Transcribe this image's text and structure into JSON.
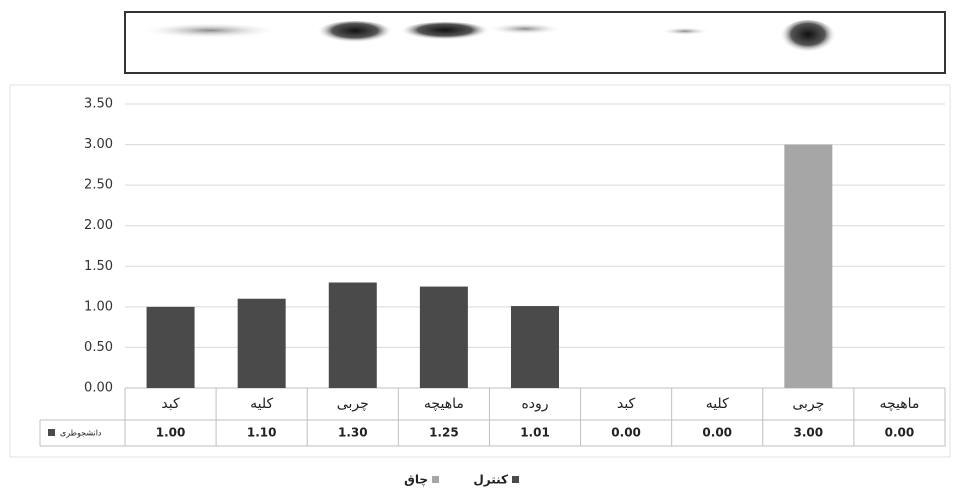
{
  "chart_data": {
    "type": "bar",
    "categories": [
      "کبد",
      "کلیه",
      "چربی",
      "ماهیچه",
      "روده",
      "کبد",
      "کلیه",
      "چربی",
      "ماهیچه"
    ],
    "series": [
      {
        "name": "کنترل",
        "color": "#4a4a4a",
        "values": [
          1.0,
          1.1,
          1.3,
          1.25,
          1.01,
          null,
          null,
          null,
          null
        ],
        "value_labels": [
          "1.00",
          "1.10",
          "1.30",
          "1.25",
          "1.01",
          null,
          null,
          null,
          null
        ]
      },
      {
        "name": "چاق",
        "color": "#a6a6a6",
        "values": [
          null,
          null,
          null,
          null,
          null,
          0,
          0,
          3,
          0
        ],
        "value_labels": [
          null,
          null,
          null,
          null,
          null,
          "0.00",
          "0.00",
          "3.00",
          "0.00"
        ]
      }
    ],
    "table_row_label": "دانشجوطری",
    "ylim": [
      0,
      3.5
    ],
    "yticks": [
      {
        "value": 0,
        "label": "0.00"
      },
      {
        "value": 0.5,
        "label": "0.50"
      },
      {
        "value": 1,
        "label": "1.00"
      },
      {
        "value": 1.5,
        "label": "1.50"
      },
      {
        "value": 2,
        "label": "2.00"
      },
      {
        "value": 2.5,
        "label": "2.50"
      },
      {
        "value": 3,
        "label": "3.00"
      },
      {
        "value": 3.5,
        "label": "3.50"
      }
    ],
    "grid": true
  }
}
